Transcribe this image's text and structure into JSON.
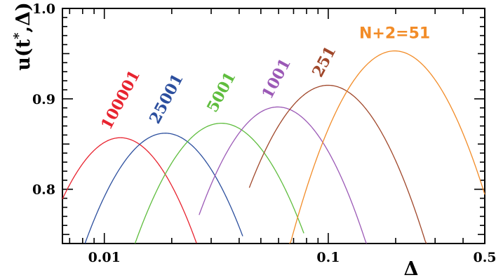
{
  "chart_data": {
    "type": "line",
    "title": "",
    "xlabel": "Δ",
    "ylabel": "u(t*,Δ)",
    "ylabel_parts": {
      "base": "u(t",
      "sup": "*",
      "rest": ",Δ)"
    },
    "xscale": "log",
    "xlim": [
      0.0065,
      0.5
    ],
    "ylim": [
      0.74,
      1.0
    ],
    "x_ticks": [
      {
        "value": 0.01,
        "label": "0.01"
      },
      {
        "value": 0.1,
        "label": "0.1"
      },
      {
        "value": 0.5,
        "label": "0.5"
      }
    ],
    "y_ticks": [
      {
        "value": 0.8,
        "label": "0.8"
      },
      {
        "value": 0.9,
        "label": "0.9"
      },
      {
        "value": 1.0,
        "label": "1.0"
      }
    ],
    "grid": false,
    "legend": "none",
    "series": [
      {
        "name": "100001",
        "color": "#e8232f",
        "peak_x": 0.0118,
        "peak_y": 0.857,
        "x_range": [
          0.0065,
          0.0258
        ]
      },
      {
        "name": "25001",
        "color": "#2c4f9e",
        "peak_x": 0.0187,
        "peak_y": 0.862,
        "x_range": [
          0.0082,
          0.0415
        ]
      },
      {
        "name": "5001",
        "color": "#5fbd3e",
        "peak_x": 0.0333,
        "peak_y": 0.873,
        "x_range": [
          0.0137,
          0.0778
        ]
      },
      {
        "name": "1001",
        "color": "#9b59b6",
        "peak_x": 0.0595,
        "peak_y": 0.891,
        "x_range": [
          0.0265,
          0.1482
        ]
      },
      {
        "name": "251",
        "color": "#a0472a",
        "peak_x": 0.0998,
        "peak_y": 0.915,
        "x_range": [
          0.0444,
          0.2747
        ]
      },
      {
        "name": "N+2=51",
        "color": "#f28c28",
        "peak_x": 0.198,
        "peak_y": 0.953,
        "x_range": [
          0.0671,
          0.5
        ]
      }
    ]
  }
}
